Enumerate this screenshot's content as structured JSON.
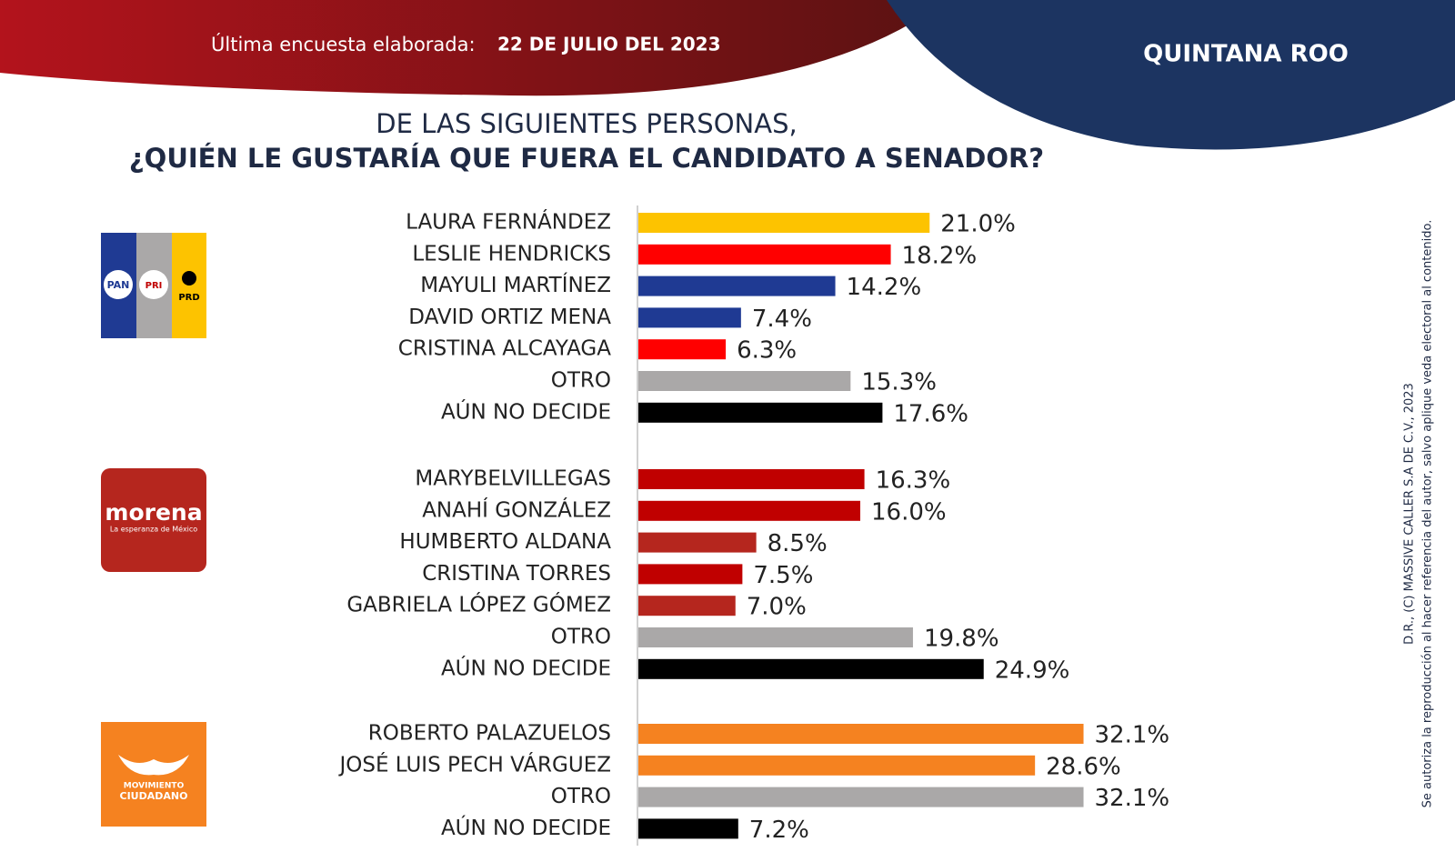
{
  "header": {
    "survey_label": "Última encuesta elaborada:",
    "survey_date": "22 DE JULIO DEL 2023",
    "state": "QUINTANA ROO"
  },
  "title": {
    "line1": "DE LAS SIGUIENTES  PERSONAS,",
    "line2": "¿QUIÉN  LE GUSTARÍA  QUE FUERA EL CANDIDATO  A SENADOR?"
  },
  "logos": {
    "pan": "PAN",
    "pri": "PRI",
    "prd": "PRD",
    "morena": "morena",
    "morena_tagline": "La esperanza de México",
    "mc_line1": "MOVIMIENTO",
    "mc_line2": "CIUDADANO"
  },
  "copyright": {
    "line1": "D.R., (C) MASSIVE CALLER S.A DE C.V., 2023",
    "line2": "Se autoriza la reproducción al hacer referencia del autor, salvo aplique veda electoral al contenido."
  },
  "chart_data": [
    {
      "type": "bar",
      "orientation": "horizontal",
      "categories": [
        "LAURA FERNÁNDEZ",
        "LESLIE HENDRICKS",
        "MAYULI MARTÍNEZ",
        "DAVID ORTIZ MENA",
        "CRISTINA ALCAYAGA",
        "OTRO",
        "AÚN NO DECIDE"
      ],
      "values": [
        21.0,
        18.2,
        14.2,
        7.4,
        6.3,
        15.3,
        17.6
      ],
      "value_labels": [
        "21.0%",
        "18.2%",
        "14.2%",
        "7.4%",
        "6.3%",
        "15.3%",
        "17.6%"
      ],
      "colors": [
        "#fdc300",
        "#ff0000",
        "#1f3a93",
        "#1f3a93",
        "#ff0000",
        "#aaa8a8",
        "#000000"
      ]
    },
    {
      "type": "bar",
      "orientation": "horizontal",
      "categories": [
        "MARYBELVILLEGAS",
        "ANAHÍ GONZÁLEZ",
        "HUMBERTO ALDANA",
        "CRISTINA TORRES",
        "GABRIELA LÓPEZ GÓMEZ",
        "OTRO",
        "AÚN NO DECIDE"
      ],
      "values": [
        16.3,
        16.0,
        8.5,
        7.5,
        7.0,
        19.8,
        24.9
      ],
      "value_labels": [
        "16.3%",
        "16.0%",
        "8.5%",
        "7.5%",
        "7.0%",
        "19.8%",
        "24.9%"
      ],
      "colors": [
        "#c00000",
        "#c00000",
        "#b5261e",
        "#c00000",
        "#b5261e",
        "#aaa8a8",
        "#000000"
      ]
    },
    {
      "type": "bar",
      "orientation": "horizontal",
      "categories": [
        "ROBERTO PALAZUELOS",
        "JOSÉ LUIS PECH VÁRGUEZ",
        "OTRO",
        "AÚN NO DECIDE"
      ],
      "values": [
        32.1,
        28.6,
        32.1,
        7.2
      ],
      "value_labels": [
        "32.1%",
        "28.6%",
        "32.1%",
        "7.2%"
      ],
      "colors": [
        "#f58220",
        "#f58220",
        "#aaa8a8",
        "#000000"
      ]
    }
  ]
}
